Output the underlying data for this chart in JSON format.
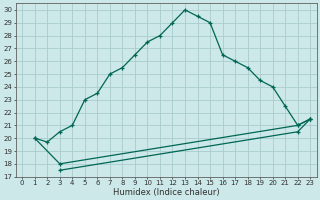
{
  "title": "",
  "xlabel": "Humidex (Indice chaleur)",
  "xlim": [
    -0.5,
    23.5
  ],
  "ylim": [
    17,
    30.5
  ],
  "yticks": [
    17,
    18,
    19,
    20,
    21,
    22,
    23,
    24,
    25,
    26,
    27,
    28,
    29,
    30
  ],
  "xticks": [
    0,
    1,
    2,
    3,
    4,
    5,
    6,
    7,
    8,
    9,
    10,
    11,
    12,
    13,
    14,
    15,
    16,
    17,
    18,
    19,
    20,
    21,
    22,
    23
  ],
  "bg_color": "#cce8e8",
  "grid_color": "#aacccc",
  "line_color": "#006655",
  "line1_x": [
    1,
    2,
    3,
    4,
    5,
    6,
    7,
    8,
    9,
    10,
    11,
    12,
    13,
    14,
    15,
    16,
    17,
    18,
    19,
    20,
    21,
    22,
    23
  ],
  "line1_y": [
    20.0,
    19.7,
    20.5,
    21.0,
    23.0,
    23.5,
    25.0,
    25.5,
    26.5,
    27.5,
    28.0,
    29.0,
    30.0,
    29.5,
    29.0,
    26.5,
    26.0,
    25.5,
    24.5,
    24.0,
    22.5,
    21.0,
    21.5
  ],
  "line2_x": [
    1,
    3,
    22,
    23
  ],
  "line2_y": [
    20.0,
    18.0,
    21.0,
    21.5
  ],
  "line3_x": [
    3,
    22,
    23
  ],
  "line3_y": [
    17.5,
    20.5,
    21.5
  ],
  "marker": "+",
  "markersize": 3.5,
  "linewidth": 0.9,
  "tick_fontsize": 5.0,
  "xlabel_fontsize": 6.0
}
